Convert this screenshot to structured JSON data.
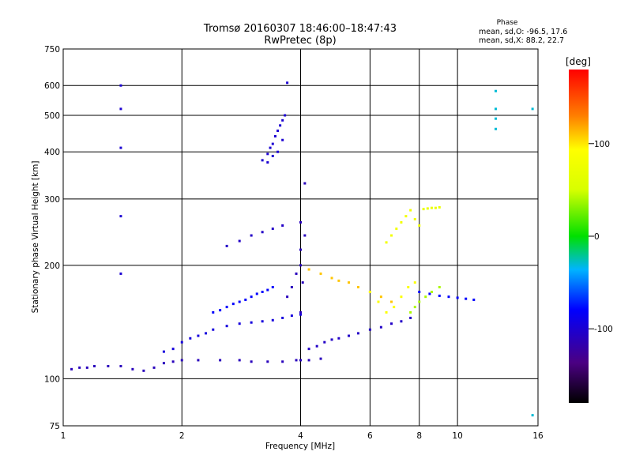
{
  "chart_data": {
    "type": "scatter",
    "title": "Tromsø 20160307 18:46:00–18:47:43",
    "subtitle": "RwPretec (8p)",
    "xlabel": "Frequency [MHz]",
    "ylabel": "Stationary phase Virtual Height [km]",
    "x_scale": "log",
    "y_scale": "log",
    "xlim": [
      1,
      16
    ],
    "ylim": [
      75,
      750
    ],
    "x_ticks": [
      1,
      2,
      4,
      6,
      8,
      10,
      16
    ],
    "y_ticks": [
      75,
      100,
      200,
      300,
      400,
      500,
      600,
      750
    ],
    "grid": true,
    "colorbar": {
      "label": "[deg]",
      "min": -180,
      "max": 180,
      "ticks": [
        -100,
        0,
        100
      ]
    },
    "phase_stats": {
      "heading": "Phase",
      "line_o": "mean, sd,O: -96.5, 17.6",
      "line_x": "mean, sd,X: 88.2, 22.7"
    },
    "series": [
      {
        "x": [
          1.05,
          1.1,
          1.15,
          1.2,
          1.3,
          1.4,
          1.5,
          1.6,
          1.7,
          1.8,
          1.9,
          2.0,
          2.2,
          2.5,
          2.8,
          3.0,
          3.3,
          3.6,
          3.9,
          4.0,
          4.2,
          4.5
        ],
        "y": [
          106,
          107,
          107,
          108,
          108,
          108,
          106,
          105,
          107,
          110,
          111,
          112,
          112,
          112,
          112,
          111,
          111,
          111,
          112,
          112,
          112,
          113
        ],
        "phase": -110
      },
      {
        "x": [
          1.8,
          1.9,
          2.0,
          2.1,
          2.2,
          2.3,
          2.4,
          2.6,
          2.8,
          3.0,
          3.2,
          3.4,
          3.6,
          3.8,
          4.0
        ],
        "y": [
          118,
          120,
          125,
          128,
          130,
          132,
          135,
          138,
          140,
          141,
          142,
          143,
          145,
          147,
          148
        ],
        "phase": -95
      },
      {
        "x": [
          2.4,
          2.5,
          2.6,
          2.7,
          2.8,
          2.9,
          3.0,
          3.1,
          3.2,
          3.3,
          3.4
        ],
        "y": [
          150,
          152,
          155,
          158,
          160,
          162,
          165,
          168,
          170,
          172,
          175
        ],
        "phase": -80
      },
      {
        "x": [
          3.2,
          3.3,
          3.35,
          3.4,
          3.45,
          3.5,
          3.55,
          3.6,
          3.65,
          3.7,
          3.3,
          3.4,
          3.5,
          3.6
        ],
        "y": [
          380,
          395,
          410,
          420,
          440,
          455,
          470,
          485,
          500,
          610,
          375,
          390,
          400,
          430
        ],
        "phase": -100
      },
      {
        "x": [
          2.6,
          2.8,
          3.0,
          3.2,
          3.4,
          3.6
        ],
        "y": [
          225,
          232,
          240,
          245,
          250,
          255
        ],
        "phase": -105
      },
      {
        "x": [
          3.7,
          3.8,
          3.9,
          4.0,
          4.0,
          4.0,
          4.1,
          4.0,
          4.05,
          4.1
        ],
        "y": [
          165,
          175,
          190,
          200,
          220,
          260,
          330,
          150,
          180,
          240
        ],
        "phase": -110
      },
      {
        "x": [
          4.2,
          4.4,
          4.6,
          4.8,
          5.0,
          5.3,
          5.6,
          6.0,
          6.4,
          6.8,
          7.2,
          7.6
        ],
        "y": [
          120,
          122,
          125,
          127,
          128,
          130,
          132,
          135,
          137,
          140,
          142,
          145
        ],
        "phase": -105
      },
      {
        "x": [
          4.2,
          4.5,
          4.8,
          5.0,
          5.3,
          5.6,
          6.0,
          6.4,
          6.8
        ],
        "y": [
          195,
          190,
          185,
          182,
          180,
          175,
          170,
          165,
          160
        ],
        "phase": 110
      },
      {
        "x": [
          6.0,
          6.3,
          6.6,
          6.9,
          7.2,
          7.5,
          7.8
        ],
        "y": [
          170,
          160,
          150,
          155,
          165,
          175,
          180
        ],
        "phase": 90
      },
      {
        "x": [
          6.6,
          6.8,
          7.0,
          7.2,
          7.4,
          7.6,
          7.8,
          8.0
        ],
        "y": [
          230,
          240,
          250,
          260,
          270,
          280,
          265,
          255
        ],
        "phase": 80
      },
      {
        "x": [
          8.2,
          8.4,
          8.6,
          8.8,
          9.0
        ],
        "y": [
          282,
          283,
          284,
          284,
          285
        ],
        "phase": 70
      },
      {
        "x": [
          8.0,
          8.5,
          9.0,
          9.5,
          10.0,
          10.5,
          11.0
        ],
        "y": [
          170,
          168,
          166,
          165,
          164,
          163,
          162
        ],
        "phase": -80
      },
      {
        "x": [
          7.6,
          7.8,
          8.0,
          8.3,
          8.6,
          9.0
        ],
        "y": [
          150,
          155,
          160,
          165,
          170,
          175
        ],
        "phase": 40
      },
      {
        "x": [
          1.4,
          1.4,
          1.4,
          1.4,
          1.4
        ],
        "y": [
          600,
          520,
          410,
          270,
          190
        ],
        "phase": -100
      },
      {
        "x": [
          12.5,
          12.5,
          12.5,
          12.5,
          15.5,
          15.5
        ],
        "y": [
          580,
          520,
          490,
          460,
          520,
          80
        ],
        "phase": -30
      }
    ]
  }
}
